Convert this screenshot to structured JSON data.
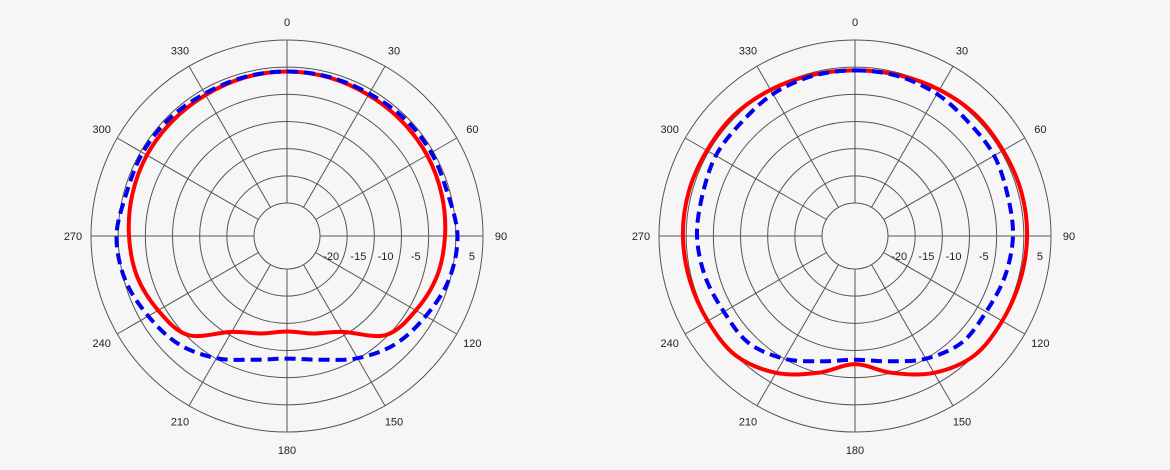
{
  "chart_data": [
    {
      "type": "polar-line",
      "angle_labels": [
        "0",
        "30",
        "60",
        "90",
        "120",
        "150",
        "180",
        "210",
        "240",
        "270",
        "300",
        "330"
      ],
      "radial_tick_labels": [
        "-20",
        "-15",
        "-10",
        "-5",
        "5"
      ],
      "r_range_db": [
        -25,
        5
      ],
      "grid": true,
      "series": [
        {
          "color": "#ff0000",
          "style": "solid",
          "angles_deg": [
            0,
            15,
            30,
            45,
            60,
            75,
            90,
            105,
            120,
            135,
            150,
            165,
            180,
            195,
            210,
            225,
            240,
            255,
            270,
            285,
            300,
            315,
            330,
            345
          ],
          "values_db": [
            -0.8,
            -0.9,
            -1.1,
            -1.2,
            -1.3,
            -1.6,
            -2.0,
            -2.5,
            -3.7,
            -5.3,
            -10.7,
            -12.5,
            -13.5,
            -12.5,
            -10.7,
            -5.3,
            -3.7,
            -2.5,
            -2.0,
            -1.6,
            -1.3,
            -1.2,
            -1.1,
            -0.9
          ]
        },
        {
          "color": "#0000ee",
          "style": "dashed",
          "angles_deg": [
            0,
            15,
            30,
            45,
            60,
            75,
            90,
            105,
            120,
            135,
            150,
            165,
            180,
            195,
            210,
            225,
            240,
            255,
            270,
            285,
            300,
            315,
            330,
            345
          ],
          "values_db": [
            -0.8,
            -0.8,
            -0.8,
            -0.5,
            -0.4,
            -0.5,
            0.3,
            -0.2,
            -1.6,
            -2.9,
            -5.1,
            -7.5,
            -8.5,
            -7.5,
            -5.1,
            -2.9,
            -1.6,
            -0.2,
            0.3,
            -0.5,
            -0.4,
            -0.5,
            -0.8,
            -0.8
          ]
        }
      ]
    },
    {
      "type": "polar-line",
      "angle_labels": [
        "0",
        "30",
        "60",
        "90",
        "120",
        "150",
        "180",
        "210",
        "240",
        "270",
        "300",
        "330"
      ],
      "radial_tick_labels": [
        "-20",
        "-15",
        "-10",
        "-5",
        "5"
      ],
      "r_range_db": [
        -25,
        5
      ],
      "grid": true,
      "series": [
        {
          "color": "#ff0000",
          "style": "solid",
          "angles_deg": [
            0,
            15,
            30,
            45,
            60,
            75,
            90,
            105,
            120,
            135,
            150,
            165,
            180,
            195,
            210,
            225,
            240,
            255,
            270,
            285,
            300,
            315,
            330,
            345
          ],
          "values_db": [
            -0.6,
            -0.4,
            0.0,
            0.4,
            0.4,
            0.6,
            0.6,
            0.4,
            0.2,
            0.0,
            -2.0,
            -5.0,
            -7.5,
            -5.0,
            -2.0,
            0.0,
            0.2,
            0.4,
            0.6,
            0.6,
            0.4,
            0.4,
            0.0,
            -0.4
          ]
        },
        {
          "color": "#0000ee",
          "style": "dashed",
          "angles_deg": [
            0,
            15,
            30,
            45,
            60,
            75,
            90,
            105,
            120,
            135,
            150,
            165,
            180,
            195,
            210,
            225,
            240,
            255,
            270,
            285,
            300,
            315,
            330,
            345
          ],
          "values_db": [
            -0.6,
            -0.6,
            -0.9,
            -1.5,
            -1.5,
            -2.0,
            -2.0,
            -2.5,
            -3.2,
            -3.3,
            -5.0,
            -7.2,
            -8.3,
            -7.2,
            -5.0,
            -3.3,
            -3.2,
            -2.5,
            -2.0,
            -2.0,
            -1.5,
            -1.5,
            -0.9,
            -0.6
          ]
        }
      ]
    }
  ]
}
